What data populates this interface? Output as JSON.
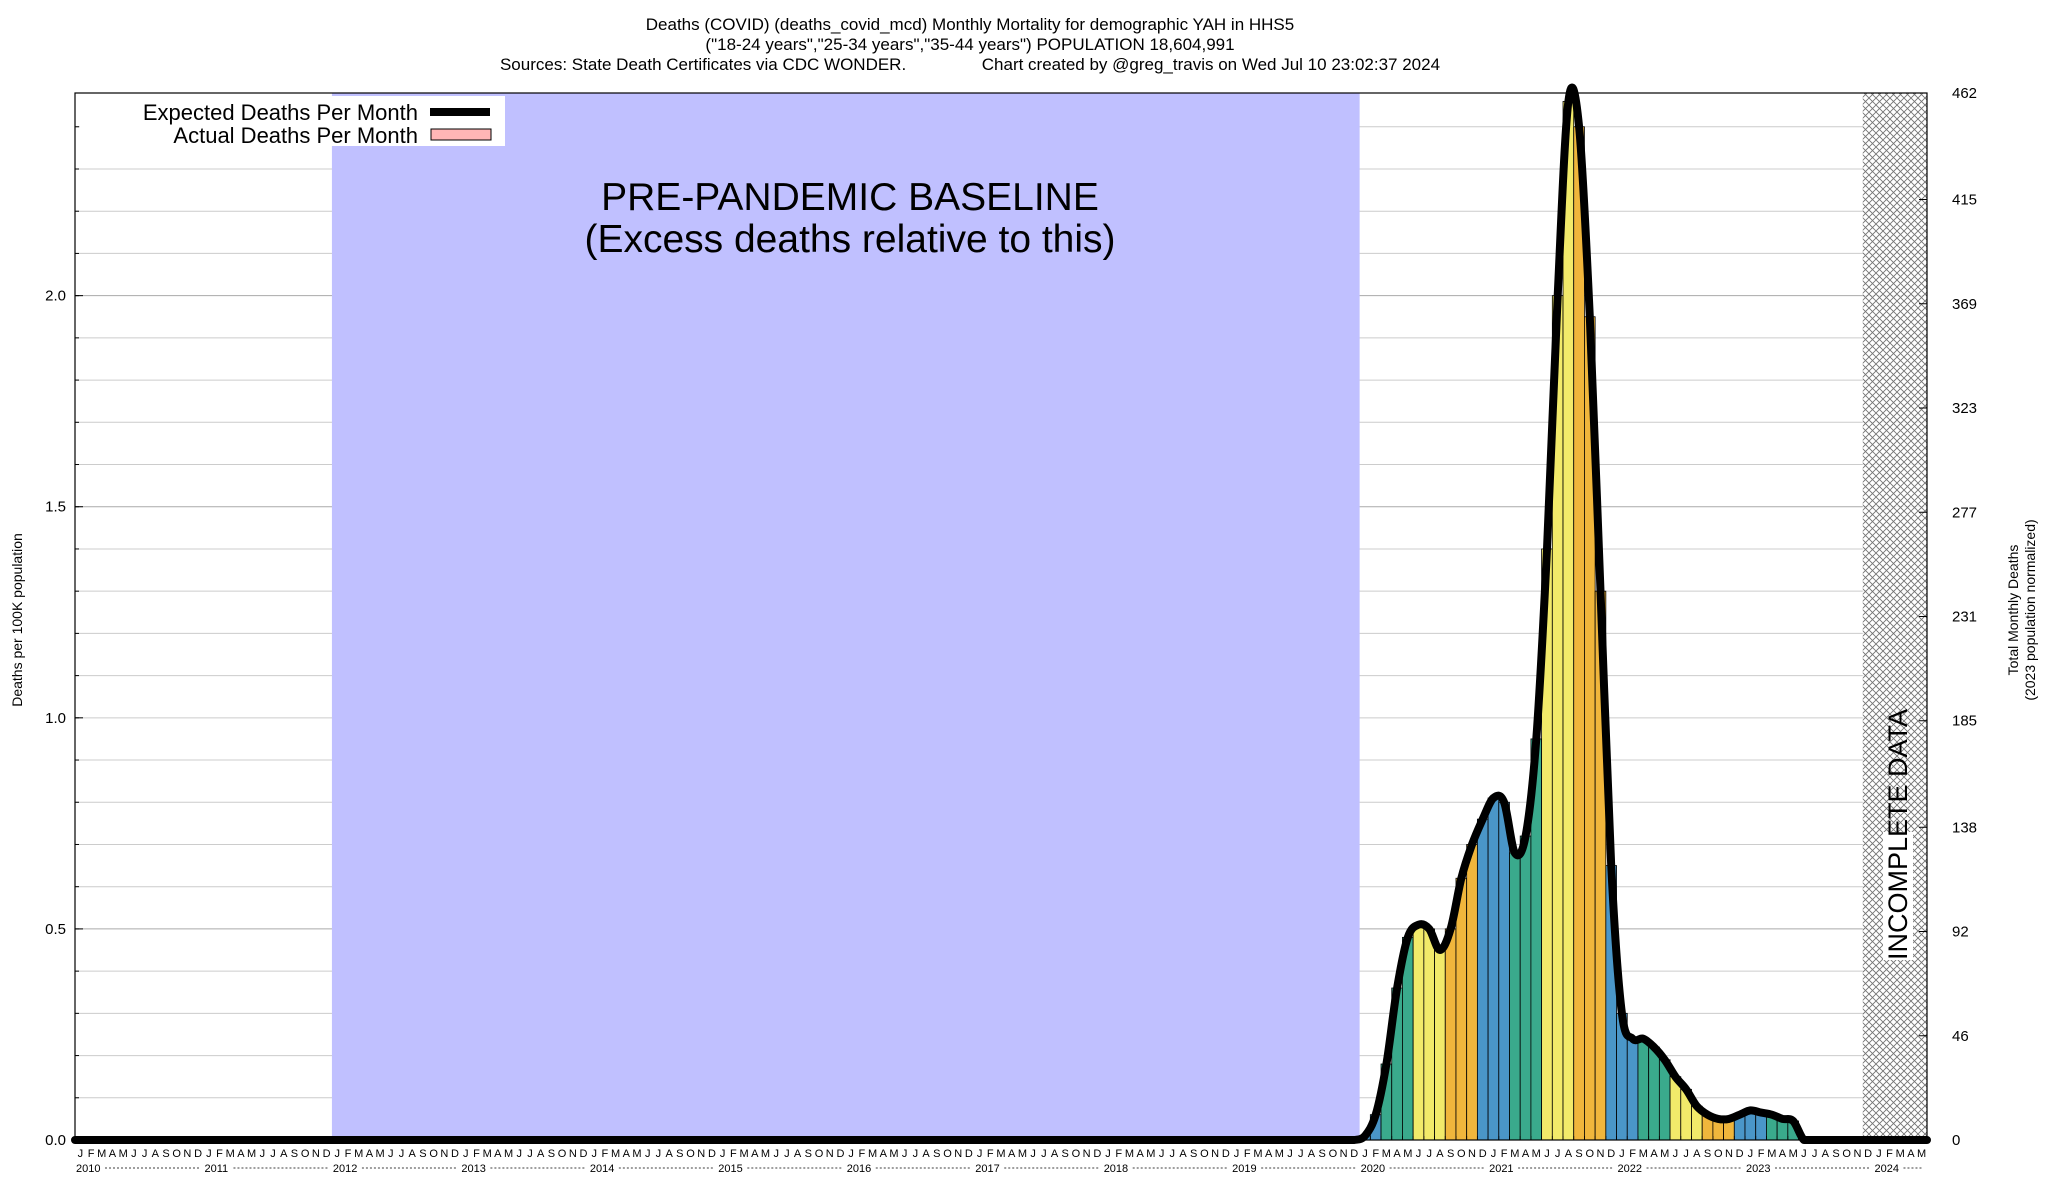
{
  "chart_data": {
    "type": "bar",
    "title_lines": [
      "Deaths (COVID) (deaths_covid_mcd) Monthly Mortality for demographic YAH in HHS5",
      "(\"18-24 years\",\"25-34 years\",\"35-44 years\") POPULATION 18,604,991",
      "Sources: State Death Certificates via CDC WONDER.                Chart created by @greg_travis on Wed Jul 10 23:02:37 2024"
    ],
    "ylabel_left": "Deaths per 100K population",
    "ylabel_right_lines": [
      "Total Monthly Deaths",
      "(2023 population normalized)"
    ],
    "ylim": [
      0,
      2.48
    ],
    "yticks_left": [
      "0.0",
      "0.5",
      "1.0",
      "1.5",
      "2.0"
    ],
    "yticks_right": [
      "0",
      "46",
      "92",
      "138",
      "185",
      "231",
      "277",
      "323",
      "369",
      "415",
      "462"
    ],
    "legend": [
      {
        "label": "Expected Deaths Per Month",
        "color": "#000000"
      },
      {
        "label": "Actual Deaths Per Month",
        "color": "#ffb6b6"
      }
    ],
    "baseline_annotation": [
      "PRE-PANDEMIC BASELINE",
      "(Excess deaths relative to this)"
    ],
    "incomplete_label": "INCOMPLETE DATA",
    "month_letters": [
      "J",
      "F",
      "M",
      "A",
      "M",
      "J",
      "J",
      "A",
      "S",
      "O",
      "N",
      "D"
    ],
    "years": [
      "2010",
      "2011",
      "2012",
      "2013",
      "2014",
      "2015",
      "2016",
      "2017",
      "2018",
      "2019",
      "2020",
      "2021",
      "2022",
      "2023",
      "2024"
    ],
    "colors": {
      "baseline": "#c0c0ff",
      "season": [
        "#4a96c8",
        "#3aaa8c",
        "#f2ea6a",
        "#f0b63c"
      ],
      "expected_line": "#000000"
    },
    "covid_start": "2020-01",
    "covid_values": [
      0.01,
      0.06,
      0.18,
      0.36,
      0.48,
      0.51,
      0.5,
      0.45,
      0.5,
      0.62,
      0.7,
      0.76,
      0.81,
      0.8,
      0.68,
      0.72,
      0.95,
      1.4,
      2.0,
      2.46,
      2.4,
      1.95,
      1.3,
      0.65,
      0.3,
      0.24,
      0.24,
      0.22,
      0.19,
      0.15,
      0.12,
      0.08,
      0.06,
      0.05,
      0.05,
      0.06,
      0.07,
      0.065,
      0.06,
      0.05,
      0.045
    ],
    "incomplete_start": "2023-12"
  }
}
